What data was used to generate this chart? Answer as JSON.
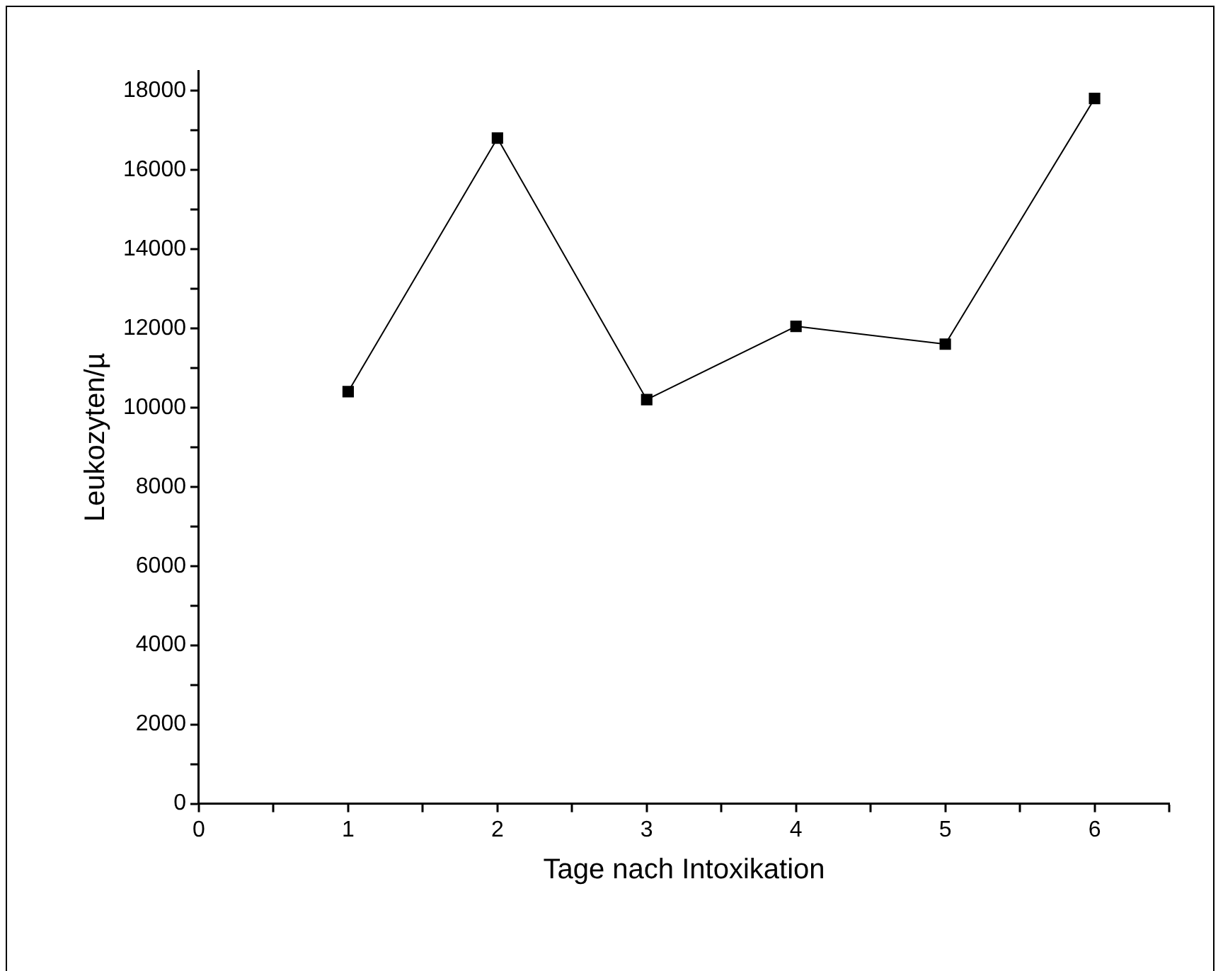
{
  "chart_data": {
    "type": "line",
    "xlabel": "Tage nach Intoxikation",
    "ylabel": "Leukozyten/µ",
    "x": [
      1,
      2,
      3,
      4,
      5,
      6
    ],
    "series": [
      {
        "color": "#000000",
        "values": [
          10400,
          16800,
          10200,
          12050,
          11600,
          17800
        ]
      }
    ],
    "xlim": [
      0,
      6.5
    ],
    "xticks": [
      0,
      {
        "value": 0.5,
        "label": null
      },
      1,
      {
        "value": 1.5,
        "label": null
      },
      2,
      {
        "value": 2.5,
        "label": null
      },
      3,
      {
        "value": 3.5,
        "label": null
      },
      4,
      {
        "value": 4.5,
        "label": null
      },
      5,
      {
        "value": 5.5,
        "label": null
      },
      6,
      {
        "value": 6.5,
        "label": null
      }
    ],
    "ylim": [
      0,
      18500
    ],
    "yticks": [
      0,
      {
        "value": 1000,
        "label": null
      },
      2000,
      {
        "value": 3000,
        "label": null
      },
      4000,
      {
        "value": 5000,
        "label": null
      },
      6000,
      {
        "value": 7000,
        "label": null
      },
      8000,
      {
        "value": 9000,
        "label": null
      },
      10000,
      {
        "value": 11000,
        "label": null
      },
      12000,
      {
        "value": 13000,
        "label": null
      },
      14000,
      {
        "value": 15000,
        "label": null
      },
      16000,
      {
        "value": 17000,
        "label": null
      },
      18000
    ],
    "grid": false,
    "legend": false,
    "marker": "square",
    "line_style": "solid"
  }
}
